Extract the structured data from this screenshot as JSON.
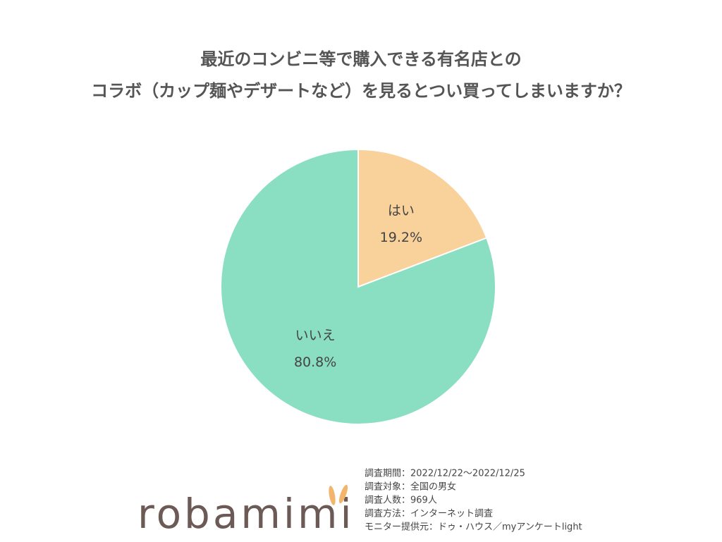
{
  "chart_data": {
    "type": "pie",
    "title": [
      "最近のコンビニ等で購入できる有名店との",
      "コラボ（カップ麺やデザートなど）を見るとつい買ってしまいますか？"
    ],
    "categories": [
      "はい",
      "いいえ"
    ],
    "values": [
      19.2,
      80.8
    ],
    "value_labels": [
      "19.2%",
      "80.8%"
    ],
    "colors": [
      "#f8d19b",
      "#8adfc3"
    ],
    "annotations": [
      "調査期間：2022/12/22～2022/12/25",
      "調査対象：全国の男女",
      "調査人数：969人",
      "調査方法：インターネット調査",
      "モニター提供元：ドゥ・ハウス／myアンケートlight"
    ],
    "logo": "robamimi"
  }
}
